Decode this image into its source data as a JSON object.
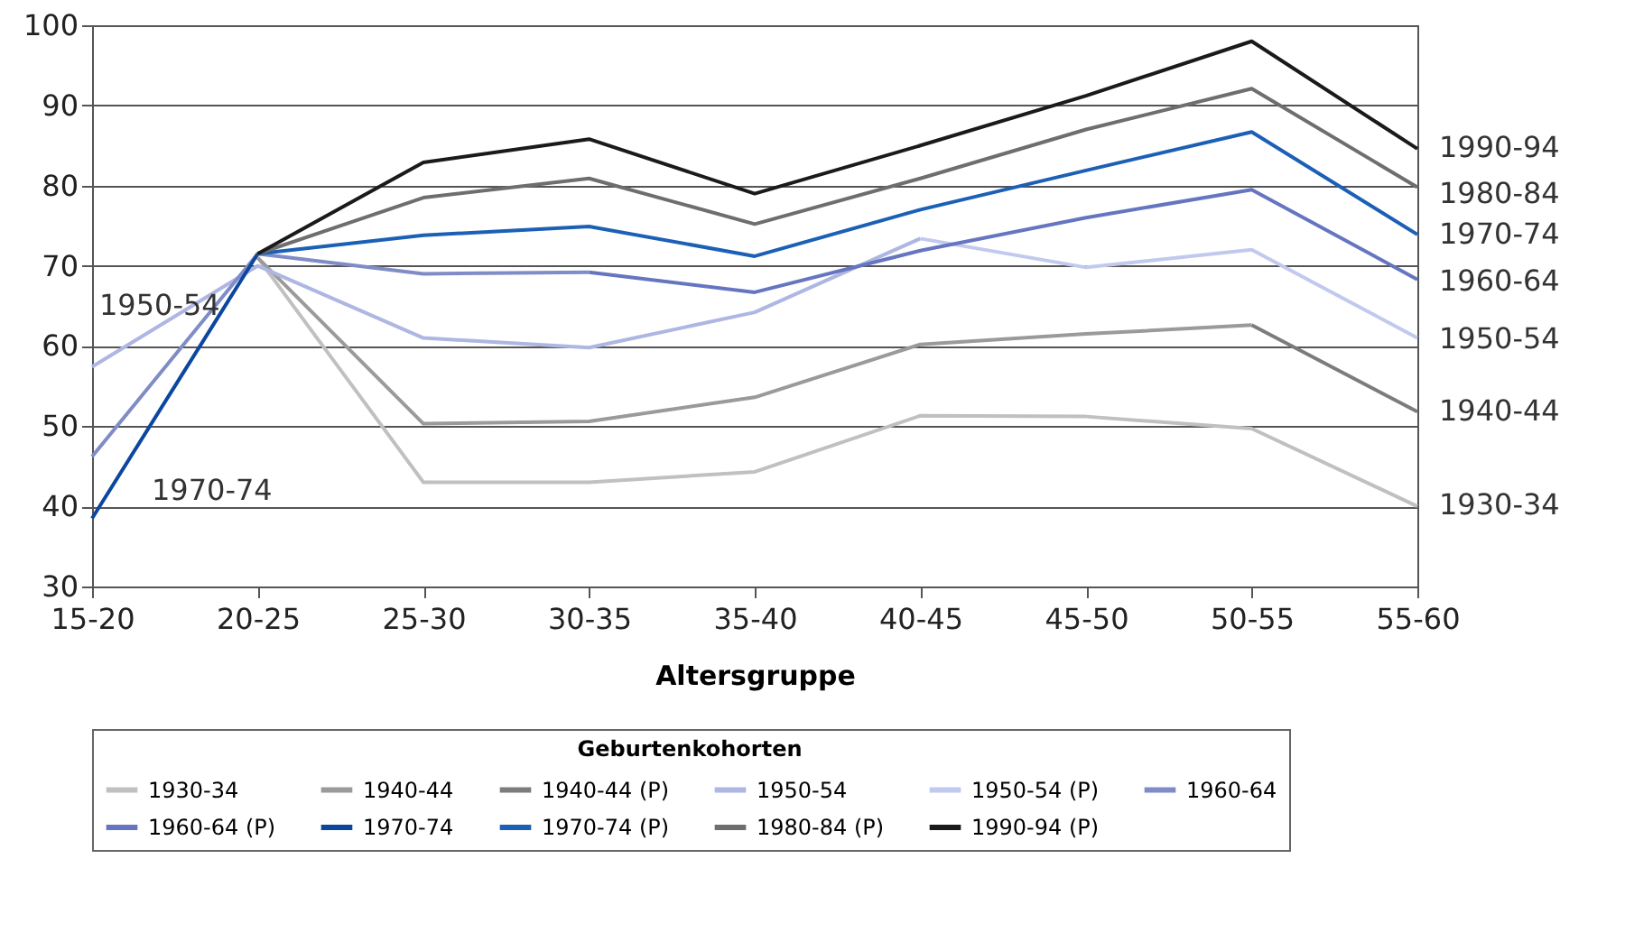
{
  "chart_data": {
    "type": "line",
    "xlabel": "Altersgruppe",
    "legend_title": "Geburtenkohorten",
    "legend": "bottom",
    "grid": "y",
    "categories": [
      "15-20",
      "20-25",
      "25-30",
      "30-35",
      "35-40",
      "40-45",
      "45-50",
      "50-55",
      "55-60"
    ],
    "ylim": [
      30,
      100
    ],
    "yticks": [
      30,
      40,
      50,
      60,
      70,
      80,
      90,
      100
    ],
    "series": [
      {
        "name": "1930-34",
        "color": "#c0c0c0",
        "values": [
          null,
          71,
          43,
          43,
          44.3,
          51.3,
          51.2,
          49.7,
          40
        ]
      },
      {
        "name": "1940-44",
        "color": "#9a9a9a",
        "values": [
          null,
          71,
          50.3,
          50.6,
          53.6,
          60.2,
          61.5,
          62.6,
          null
        ]
      },
      {
        "name": "1940-44 (P)",
        "color": "#7c7c7c",
        "values": [
          null,
          null,
          null,
          null,
          null,
          null,
          null,
          62.6,
          51.8
        ]
      },
      {
        "name": "1950-54",
        "color": "#aeb6e2",
        "values": [
          57.4,
          70,
          61,
          59.8,
          64.2,
          73.4,
          null,
          null,
          null
        ]
      },
      {
        "name": "1950-54 (P)",
        "color": "#c2c9ee",
        "values": [
          null,
          null,
          null,
          null,
          null,
          73.4,
          69.8,
          72,
          61
        ]
      },
      {
        "name": "1960-64",
        "color": "#7f8cc6",
        "values": [
          46.2,
          71.5,
          69,
          69.2,
          null,
          null,
          null,
          null,
          null
        ]
      },
      {
        "name": "1960-64 (P)",
        "color": "#6675c0",
        "values": [
          null,
          null,
          null,
          69.2,
          66.7,
          71.9,
          76,
          79.5,
          68.3
        ]
      },
      {
        "name": "1970-74",
        "color": "#0b479f",
        "values": [
          38.5,
          71.5,
          null,
          null,
          null,
          null,
          null,
          null,
          null
        ]
      },
      {
        "name": "1970-74 (P)",
        "color": "#1c60b6",
        "values": [
          null,
          71.5,
          73.8,
          74.9,
          71.2,
          77,
          81.9,
          86.7,
          73.9
        ]
      },
      {
        "name": "1980-84 (P)",
        "color": "#6e6e6e",
        "values": [
          null,
          71.5,
          78.5,
          80.9,
          75.2,
          80.9,
          87,
          92.1,
          79.8
        ]
      },
      {
        "name": "1990-94 (P)",
        "color": "#1a1a1a",
        "values": [
          null,
          71.5,
          82.9,
          85.8,
          79,
          85,
          91.2,
          98,
          84.6
        ]
      }
    ],
    "annotations": [
      {
        "text": "1990-94",
        "x": "55-60",
        "y": 84.7
      },
      {
        "text": "1980-84",
        "x": "55-60",
        "y": 79
      },
      {
        "text": "1970-74",
        "x": "55-60",
        "y": 73.9
      },
      {
        "text": "1960-64",
        "x": "55-60",
        "y": 68
      },
      {
        "text": "1950-54",
        "x": "55-60",
        "y": 60.8
      },
      {
        "text": "1940-44",
        "x": "55-60",
        "y": 51.8
      },
      {
        "text": "1930-34",
        "x": "55-60",
        "y": 40.1
      },
      "1950-54",
      "1970-74"
    ]
  }
}
